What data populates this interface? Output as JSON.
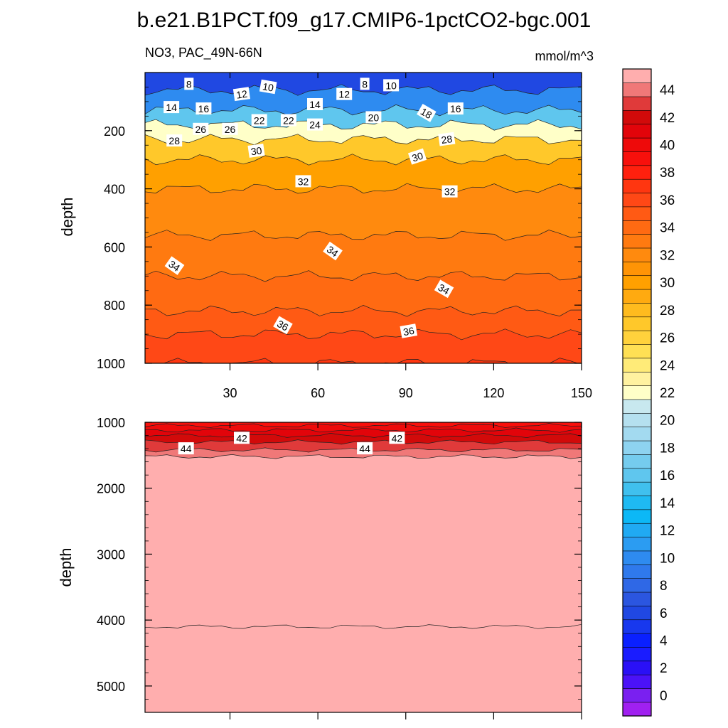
{
  "chart_data": {
    "type": "contour",
    "title": "b.e21.B1PCT.f09_g17.CMIP6-1pctCO2-bgc.001",
    "variable_label": "NO3, PAC_49N-66N",
    "units_label": "mmol/m^3",
    "x_axis": {
      "range": [
        1,
        150
      ],
      "ticks": [
        30,
        60,
        90,
        120,
        150
      ]
    },
    "panels": [
      {
        "name": "upper",
        "ylabel": "depth",
        "y_range": [
          0,
          1000
        ],
        "y_ticks": [
          200,
          400,
          600,
          800,
          1000
        ],
        "bands": [
          {
            "depth": 0,
            "value": 6
          },
          {
            "depth": 60,
            "value": 10
          },
          {
            "depth": 130,
            "value": 16
          },
          {
            "depth": 180,
            "value": 22
          },
          {
            "depth": 230,
            "value": 27
          },
          {
            "depth": 300,
            "value": 30
          },
          {
            "depth": 400,
            "value": 32
          },
          {
            "depth": 560,
            "value": 33
          },
          {
            "depth": 700,
            "value": 34
          },
          {
            "depth": 820,
            "value": 35
          },
          {
            "depth": 900,
            "value": 36
          },
          {
            "depth": 1000,
            "value": 37
          }
        ],
        "contour_labels": [
          {
            "text": "8",
            "x": 16,
            "depth": 40,
            "angle": 0
          },
          {
            "text": "10",
            "x": 43,
            "depth": 50,
            "angle": 10
          },
          {
            "text": "8",
            "x": 76,
            "depth": 40,
            "angle": 0
          },
          {
            "text": "10",
            "x": 85,
            "depth": 45,
            "angle": 0
          },
          {
            "text": "12",
            "x": 34,
            "depth": 75,
            "angle": -8
          },
          {
            "text": "12",
            "x": 69,
            "depth": 75,
            "angle": 0
          },
          {
            "text": "14",
            "x": 10,
            "depth": 120,
            "angle": 0
          },
          {
            "text": "16",
            "x": 21,
            "depth": 125,
            "angle": 0
          },
          {
            "text": "14",
            "x": 59,
            "depth": 110,
            "angle": 0
          },
          {
            "text": "16",
            "x": 107,
            "depth": 125,
            "angle": 0
          },
          {
            "text": "18",
            "x": 97,
            "depth": 140,
            "angle": 30
          },
          {
            "text": "20",
            "x": 79,
            "depth": 155,
            "angle": 0
          },
          {
            "text": "22",
            "x": 40,
            "depth": 165,
            "angle": 0
          },
          {
            "text": "22",
            "x": 50,
            "depth": 165,
            "angle": 0
          },
          {
            "text": "24",
            "x": 59,
            "depth": 180,
            "angle": 0
          },
          {
            "text": "26",
            "x": 20,
            "depth": 195,
            "angle": 0
          },
          {
            "text": "26",
            "x": 30,
            "depth": 195,
            "angle": 0
          },
          {
            "text": "28",
            "x": 11,
            "depth": 235,
            "angle": 0
          },
          {
            "text": "28",
            "x": 104,
            "depth": 230,
            "angle": -8
          },
          {
            "text": "30",
            "x": 39,
            "depth": 270,
            "angle": -8
          },
          {
            "text": "30",
            "x": 94,
            "depth": 290,
            "angle": -18
          },
          {
            "text": "32",
            "x": 55,
            "depth": 375,
            "angle": 0
          },
          {
            "text": "32",
            "x": 105,
            "depth": 410,
            "angle": 0
          },
          {
            "text": "34",
            "x": 11,
            "depth": 665,
            "angle": 35
          },
          {
            "text": "34",
            "x": 65,
            "depth": 615,
            "angle": 35
          },
          {
            "text": "34",
            "x": 103,
            "depth": 745,
            "angle": 30
          },
          {
            "text": "36",
            "x": 48,
            "depth": 870,
            "angle": 30
          },
          {
            "text": "36",
            "x": 91,
            "depth": 890,
            "angle": -10
          }
        ]
      },
      {
        "name": "lower",
        "ylabel": "depth",
        "y_range": [
          1000,
          5400
        ],
        "y_ticks": [
          1000,
          2000,
          3000,
          4000,
          5000
        ],
        "bands": [
          {
            "depth": 1000,
            "value": 39
          },
          {
            "depth": 1050,
            "value": 40
          },
          {
            "depth": 1120,
            "value": 41
          },
          {
            "depth": 1200,
            "value": 42
          },
          {
            "depth": 1300,
            "value": 43
          },
          {
            "depth": 1420,
            "value": 44
          },
          {
            "depth": 1520,
            "value": 46
          },
          {
            "depth": 4100,
            "value": 45
          }
        ],
        "contour_labels": [
          {
            "text": "42",
            "x": 34,
            "depth": 1240,
            "angle": 0
          },
          {
            "text": "42",
            "x": 87,
            "depth": 1240,
            "angle": 0
          },
          {
            "text": "44",
            "x": 15,
            "depth": 1400,
            "angle": 0
          },
          {
            "text": "44",
            "x": 76,
            "depth": 1400,
            "angle": 0
          }
        ]
      }
    ],
    "colorbar": {
      "min": -1,
      "step": 1,
      "labels": [
        0,
        2,
        4,
        6,
        8,
        10,
        12,
        14,
        16,
        18,
        20,
        22,
        24,
        26,
        28,
        30,
        32,
        34,
        36,
        38,
        40,
        42,
        44
      ],
      "colors": [
        "#a020f0",
        "#7a20f0",
        "#4b12f8",
        "#2a10f6",
        "#1a1cff",
        "#0a20ff",
        "#1838ee",
        "#2048e2",
        "#2b56e0",
        "#2f68e6",
        "#2f79ec",
        "#2e8bf0",
        "#2b9cf2",
        "#20aaf3",
        "#0cb8f6",
        "#1fbaf2",
        "#40c0ee",
        "#5fc6ee",
        "#75ccee",
        "#8ed3f0",
        "#a3daf0",
        "#b5e0ef",
        "#c8e8ef",
        "#ffffc8",
        "#fff2a0",
        "#ffeb78",
        "#ffe054",
        "#ffd23c",
        "#ffc82a",
        "#ffbb1e",
        "#ffaa10",
        "#ffa000",
        "#ff9406",
        "#ff8a0e",
        "#ff7a10",
        "#ff6a12",
        "#ff5a14",
        "#ff4816",
        "#ff3610",
        "#ff200e",
        "#f8100c",
        "#ee0a0a",
        "#e2040a",
        "#d20a0a",
        "#e03a3a",
        "#f07878",
        "#ffaeae"
      ]
    }
  }
}
